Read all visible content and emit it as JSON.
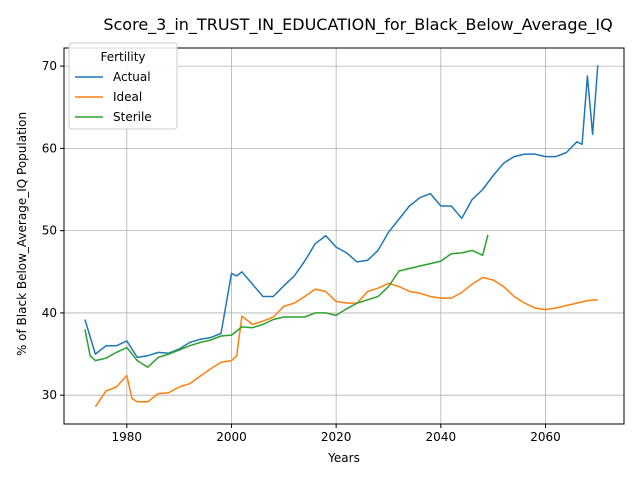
{
  "chart_data": {
    "type": "line",
    "title": "Score_3_in_TRUST_IN_EDUCATION_for_Black_Below_Average_IQ",
    "xlabel": "Years",
    "ylabel": "% of Black Below_Average_IQ Population",
    "xlim": [
      1968,
      2075
    ],
    "ylim": [
      26.5,
      72.2
    ],
    "xticks": [
      1980,
      2000,
      2020,
      2040,
      2060
    ],
    "yticks": [
      30,
      40,
      50,
      60,
      70
    ],
    "grid": true,
    "legend": {
      "title": "Fertility",
      "placement": "upper-left"
    },
    "series": [
      {
        "name": "Actual",
        "color": "#1f77b4",
        "x": [
          1972,
          1974,
          1976,
          1978,
          1980,
          1982,
          1984,
          1986,
          1988,
          1990,
          1992,
          1994,
          1996,
          1998,
          2000,
          2001,
          2002,
          2004,
          2006,
          2008,
          2010,
          2012,
          2014,
          2016,
          2018,
          2020,
          2022,
          2024,
          2026,
          2028,
          2030,
          2032,
          2034,
          2036,
          2038,
          2040,
          2042,
          2044,
          2046,
          2048,
          2050,
          2052,
          2054,
          2056,
          2058,
          2060,
          2062,
          2064,
          2066,
          2067,
          2068,
          2069,
          2070
        ],
        "y": [
          39.2,
          35.0,
          36.0,
          36.0,
          36.6,
          34.6,
          34.8,
          35.2,
          35.1,
          35.6,
          36.4,
          36.8,
          37.0,
          37.5,
          44.8,
          44.5,
          45.0,
          43.5,
          42.0,
          42.0,
          43.3,
          44.5,
          46.3,
          48.4,
          49.4,
          48.0,
          47.3,
          46.2,
          46.4,
          47.6,
          49.8,
          51.4,
          53.0,
          54.0,
          54.5,
          53.0,
          53.0,
          51.5,
          53.8,
          55.0,
          56.7,
          58.2,
          59.0,
          59.3,
          59.3,
          59.0,
          59.0,
          59.5,
          60.8,
          60.5,
          68.8,
          61.7,
          70.1
        ]
      },
      {
        "name": "Ideal",
        "color": "#ff7f0e",
        "x": [
          1974,
          1976,
          1978,
          1980,
          1981,
          1982,
          1984,
          1986,
          1988,
          1990,
          1992,
          1994,
          1996,
          1998,
          2000,
          2001,
          2002,
          2004,
          2006,
          2008,
          2010,
          2012,
          2014,
          2016,
          2018,
          2020,
          2022,
          2024,
          2026,
          2028,
          2030,
          2032,
          2034,
          2036,
          2038,
          2040,
          2042,
          2044,
          2046,
          2048,
          2050,
          2052,
          2054,
          2056,
          2058,
          2060,
          2062,
          2064,
          2066,
          2068,
          2070
        ],
        "y": [
          28.6,
          30.5,
          31.0,
          32.4,
          29.6,
          29.2,
          29.2,
          30.2,
          30.3,
          31.0,
          31.4,
          32.3,
          33.2,
          34.0,
          34.2,
          34.8,
          39.6,
          38.6,
          39.0,
          39.5,
          40.8,
          41.2,
          42.0,
          42.9,
          42.6,
          41.4,
          41.2,
          41.2,
          42.6,
          43.0,
          43.6,
          43.2,
          42.6,
          42.4,
          42.0,
          41.8,
          41.8,
          42.5,
          43.5,
          44.3,
          44.0,
          43.2,
          42.0,
          41.2,
          40.6,
          40.4,
          40.6,
          40.9,
          41.2,
          41.5,
          41.6
        ]
      },
      {
        "name": "Sterile",
        "color": "#2ca02c",
        "x": [
          1972,
          1973,
          1974,
          1976,
          1978,
          1980,
          1982,
          1984,
          1986,
          1988,
          1990,
          1992,
          1994,
          1996,
          1998,
          2000,
          2002,
          2004,
          2006,
          2008,
          2010,
          2012,
          2014,
          2016,
          2018,
          2020,
          2022,
          2024,
          2026,
          2028,
          2030,
          2032,
          2034,
          2036,
          2038,
          2040,
          2042,
          2044,
          2046,
          2048,
          2049
        ],
        "y": [
          38.0,
          34.8,
          34.2,
          34.5,
          35.2,
          35.8,
          34.2,
          33.4,
          34.6,
          35.0,
          35.5,
          36.0,
          36.4,
          36.7,
          37.2,
          37.3,
          38.3,
          38.2,
          38.6,
          39.2,
          39.5,
          39.5,
          39.5,
          40.0,
          40.0,
          39.7,
          40.5,
          41.2,
          41.6,
          42.0,
          43.2,
          45.1,
          45.4,
          45.7,
          46.0,
          46.3,
          47.2,
          47.3,
          47.6,
          47.0,
          49.5
        ]
      }
    ]
  }
}
